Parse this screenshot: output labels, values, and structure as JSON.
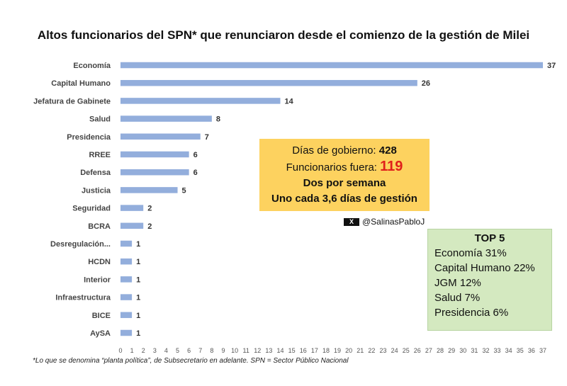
{
  "chart_data": {
    "type": "bar",
    "orientation": "horizontal",
    "title": "Altos funcionarios del SPN* que renunciaron desde el comienzo de la gestión de Milei",
    "categories": [
      "Economía",
      "Capital Humano",
      "Jefatura de Gabinete",
      "Salud",
      "Presidencia",
      "RREE",
      "Defensa",
      "Justicia",
      "Seguridad",
      "BCRA",
      "Desregulación...",
      "HCDN",
      "Interior",
      "Infraestructura",
      "BICE",
      "AySA"
    ],
    "values": [
      37,
      26,
      14,
      8,
      7,
      6,
      6,
      5,
      2,
      2,
      1,
      1,
      1,
      1,
      1,
      1
    ],
    "xlim": [
      0,
      37
    ],
    "xticks": [
      "0",
      "1",
      "2",
      "3",
      "4",
      "5",
      "6",
      "7",
      "8",
      "9",
      "10",
      "11",
      "12",
      "13",
      "14",
      "15",
      "16",
      "17",
      "18",
      "19",
      "20",
      "21",
      "22",
      "23",
      "24",
      "25",
      "26",
      "27",
      "28",
      "29",
      "30",
      "31",
      "32",
      "33",
      "34",
      "35",
      "36",
      "37"
    ],
    "grid": false,
    "bar_color": "#93aedc"
  },
  "info_box": {
    "dias_label": "Días de gobierno:",
    "dias_value": "428",
    "funcionarios_label": "Funcionarios fuera:",
    "funcionarios_value": "119",
    "line3": "Dos por semana",
    "line4": "Uno cada 3,6 días de gestión",
    "bg_color": "#fdd25f",
    "highlight_color": "#e0201b"
  },
  "handle": {
    "icon": "x-logo-icon",
    "logo_text": "X",
    "text": "@SalinasPabloJ"
  },
  "top5": {
    "title": "TOP 5",
    "items": [
      "Economía 31%",
      "Capital Humano 22%",
      "JGM 12%",
      "Salud 7%",
      "Presidencia 6%"
    ],
    "bg_color": "#d4e9c0"
  },
  "footnote": "*Lo que se denomina “planta política”, de Subsecretario en adelante. SPN = Sector Público Nacional"
}
